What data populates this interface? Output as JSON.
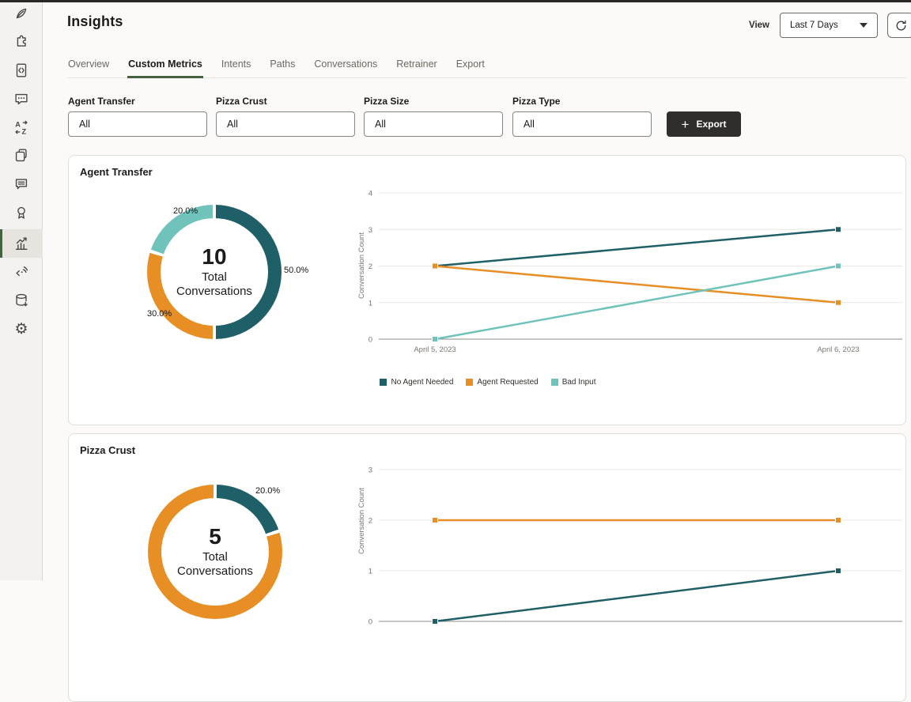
{
  "header": {
    "title": "Insights",
    "view_label": "View",
    "view_value": "Last 7 Days"
  },
  "tabs": {
    "items": [
      {
        "label": "Overview"
      },
      {
        "label": "Custom Metrics"
      },
      {
        "label": "Intents"
      },
      {
        "label": "Paths"
      },
      {
        "label": "Conversations"
      },
      {
        "label": "Retrainer"
      },
      {
        "label": "Export"
      }
    ]
  },
  "filters": {
    "items": [
      {
        "label": "Agent Transfer",
        "value": "All"
      },
      {
        "label": "Pizza Crust",
        "value": "All"
      },
      {
        "label": "Pizza Size",
        "value": "All"
      },
      {
        "label": "Pizza Type",
        "value": "All"
      }
    ],
    "export_label": "Export"
  },
  "sidebar": {
    "icons": [
      "feather-icon",
      "puzzle-store-icon",
      "code-file-icon",
      "chat-dots-icon",
      "translate-icon",
      "copy-pages-icon",
      "chat-lines-icon",
      "award-badge-icon",
      "insights-chart-icon",
      "code-signal-icon",
      "database-icon",
      "settings-gear-icon"
    ],
    "selected": "insights-chart-icon"
  },
  "colors": {
    "teal_dark": "#1f5f67",
    "orange": "#e78e25",
    "teal_light": "#6fc3ba",
    "accent_green": "#45613f",
    "grid": "#ebe8e4",
    "axis": "#8e8983",
    "tick_text": "#7b756f"
  },
  "chart_data": [
    {
      "id": "agent-transfer-donut",
      "type": "pie",
      "title": "Agent Transfer",
      "labels": [
        "50.0%",
        "30.0%",
        "20.0%"
      ],
      "values": [
        50,
        30,
        20
      ],
      "colors": [
        "#1f5f67",
        "#e78e25",
        "#6fc3ba"
      ],
      "center_value": "10",
      "center_label": "Total Conversations"
    },
    {
      "id": "agent-transfer-line",
      "type": "line",
      "x": [
        "April 5, 2023",
        "April 6, 2023"
      ],
      "ylabel": "Conversation Count",
      "ylim": [
        0,
        4
      ],
      "yticks": [
        0,
        1,
        2,
        3,
        4
      ],
      "grid": true,
      "legend_position": "bottom",
      "series": [
        {
          "name": "No Agent Needed",
          "color": "#1f5f67",
          "values": [
            2,
            3
          ]
        },
        {
          "name": "Agent Requested",
          "color": "#e78e25",
          "values": [
            2,
            1
          ]
        },
        {
          "name": "Bad Input",
          "color": "#6fc3ba",
          "values": [
            0,
            2
          ]
        }
      ]
    },
    {
      "id": "pizza-crust-donut",
      "type": "pie",
      "title": "Pizza Crust",
      "labels": [
        "20.0%",
        ""
      ],
      "values": [
        20,
        80
      ],
      "colors": [
        "#1f5f67",
        "#e78e25"
      ],
      "center_value": "5",
      "center_label": "Total Conversations"
    },
    {
      "id": "pizza-crust-line",
      "type": "line",
      "x": [],
      "ylabel": "Conversation Count",
      "ylim": [
        0,
        3
      ],
      "yticks": [
        0,
        1,
        2,
        3
      ],
      "grid": true,
      "legend_position": "none",
      "series": [
        {
          "name": "",
          "color": "#e78e25",
          "values": [
            2,
            2
          ]
        },
        {
          "name": "",
          "color": "#1f5f67",
          "values": [
            0,
            1
          ]
        }
      ]
    }
  ]
}
